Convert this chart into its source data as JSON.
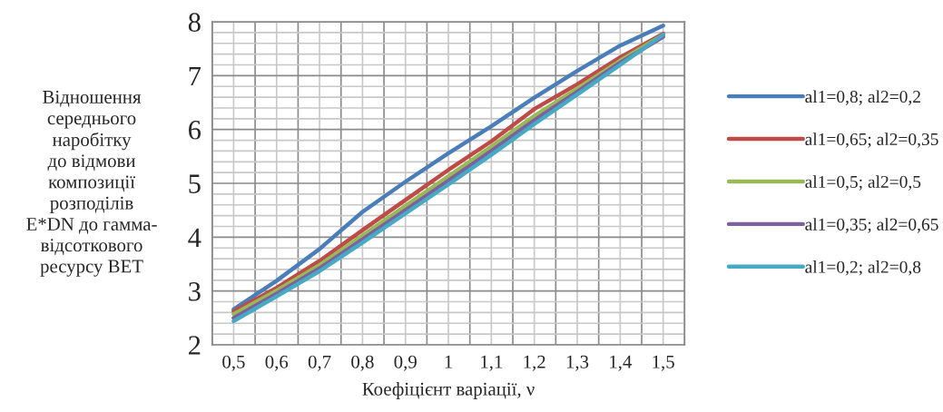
{
  "chart_data": {
    "type": "line",
    "xlabel": "Коефіцієнт варіації, ν",
    "ylabel": "Відношення\nсереднього\nнаробітку\nдо відмови\nкомпозиції\nрозподілів\nE*DN до гамма-\nвідсоткового\nресурсу ВЕТ",
    "categories": [
      "0,5",
      "0,6",
      "0,7",
      "0,8",
      "0,9",
      "1",
      "1,1",
      "1,2",
      "1,3",
      "1,4",
      "1,5"
    ],
    "series": [
      {
        "name": "al1=0,8; al2=0,2",
        "color": "#4a7ebb",
        "values": [
          2.66,
          3.19,
          3.78,
          4.47,
          5.03,
          5.56,
          6.06,
          6.59,
          7.09,
          7.56,
          7.93
        ]
      },
      {
        "name": "al1=0,65; al2=0,35",
        "color": "#be4b48",
        "values": [
          2.62,
          3.06,
          3.56,
          4.13,
          4.69,
          5.25,
          5.78,
          6.38,
          6.84,
          7.34,
          7.78
        ]
      },
      {
        "name": "al1=0,5; al2=0,5",
        "color": "#98b954",
        "values": [
          2.57,
          3.01,
          3.48,
          4.03,
          4.58,
          5.13,
          5.68,
          6.25,
          6.76,
          7.28,
          7.76
        ]
      },
      {
        "name": "al1=0,35; al2=0,65",
        "color": "#7d60a0",
        "values": [
          2.5,
          2.95,
          3.42,
          3.96,
          4.5,
          5.05,
          5.6,
          6.17,
          6.7,
          7.24,
          7.72
        ]
      },
      {
        "name": "al1=0,2; al2=0,8",
        "color": "#46aac5",
        "values": [
          2.44,
          2.9,
          3.37,
          3.9,
          4.44,
          4.98,
          5.53,
          6.1,
          6.65,
          7.2,
          7.76
        ]
      }
    ],
    "ylim": [
      2,
      8
    ],
    "yticks": [
      2,
      3,
      4,
      5,
      6,
      7,
      8
    ],
    "grid": true,
    "legend": "right",
    "marker": "none",
    "line_style": "solid"
  }
}
